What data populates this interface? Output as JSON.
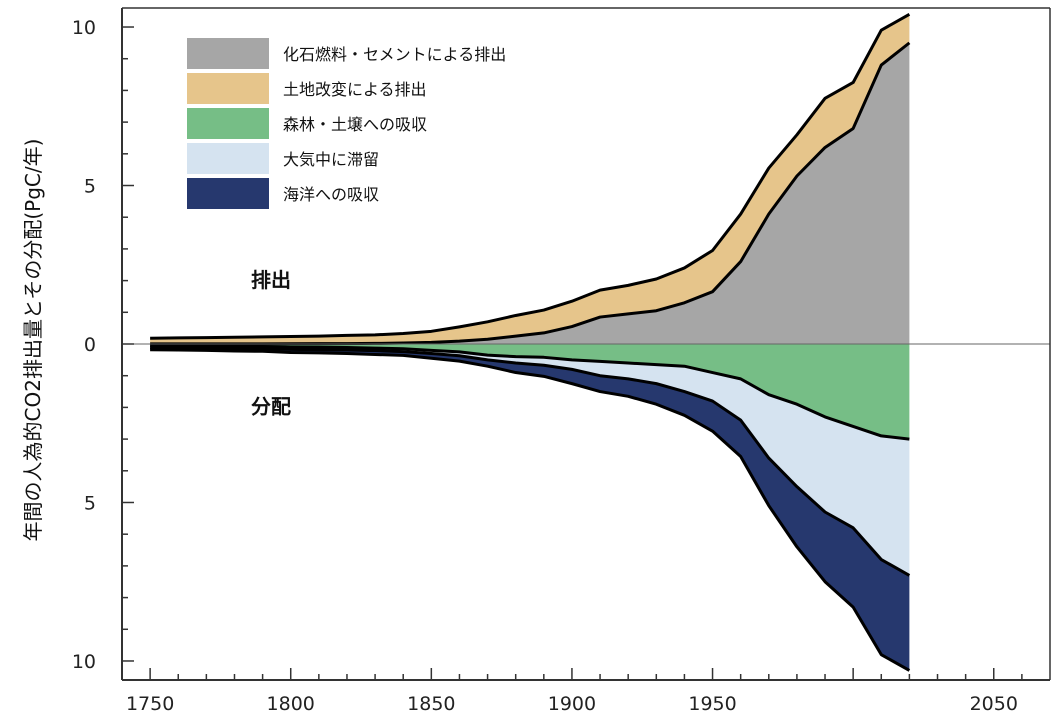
{
  "chart_data": {
    "type": "area",
    "ylabel": "年間の人為的CO2排出量とその分配(PgC/年)",
    "xlim": [
      1740,
      2070
    ],
    "ylim": [
      -10.6,
      10.6
    ],
    "x_ticks": [
      1750,
      1800,
      1850,
      1900,
      1950,
      2050
    ],
    "x_tick_labels": [
      "1750",
      "1800",
      "1850",
      "1900",
      "1950",
      "2050"
    ],
    "y_ticks": [
      10,
      5,
      0,
      -5,
      -10
    ],
    "y_tick_labels": [
      "10",
      "5",
      "0",
      "5",
      "10"
    ],
    "annotations": [
      {
        "text": "排出",
        "x": 1793,
        "y": 1.8
      },
      {
        "text": "分配",
        "x": 1793,
        "y": -2.2
      }
    ],
    "legend": {
      "position": "top-left",
      "entries": [
        {
          "label": "化石燃料・セメントによる排出",
          "color": "#a6a6a6"
        },
        {
          "label": "土地改変による排出",
          "color": "#e6c58b"
        },
        {
          "label": "森林・土壌への吸収",
          "color": "#76be86"
        },
        {
          "label": "大気中に滞留",
          "color": "#d5e3f0"
        },
        {
          "label": "海洋への吸収",
          "color": "#26386e"
        }
      ]
    },
    "x": [
      1750,
      1760,
      1770,
      1780,
      1790,
      1800,
      1810,
      1820,
      1830,
      1840,
      1850,
      1860,
      1870,
      1880,
      1890,
      1900,
      1910,
      1920,
      1930,
      1940,
      1950,
      1960,
      1970,
      1980,
      1990,
      2000,
      2010,
      2020
    ],
    "series": [
      {
        "name": "化石燃料・セメントによる排出",
        "role": "emission_positive",
        "color": "#a6a6a6",
        "values": [
          0.003,
          0.003,
          0.003,
          0.004,
          0.005,
          0.008,
          0.01,
          0.013,
          0.018,
          0.03,
          0.05,
          0.09,
          0.15,
          0.25,
          0.35,
          0.55,
          0.85,
          0.95,
          1.05,
          1.3,
          1.65,
          2.6,
          4.1,
          5.3,
          6.2,
          6.8,
          8.8,
          9.5
        ]
      },
      {
        "name": "土地改変による排出",
        "role": "emission_positive",
        "color": "#e6c58b",
        "values": [
          0.18,
          0.19,
          0.2,
          0.21,
          0.22,
          0.23,
          0.24,
          0.26,
          0.27,
          0.3,
          0.35,
          0.45,
          0.55,
          0.65,
          0.72,
          0.8,
          0.85,
          0.9,
          1.0,
          1.1,
          1.3,
          1.5,
          1.45,
          1.3,
          1.55,
          1.45,
          1.1,
          0.9
        ]
      },
      {
        "name": "森林・土壌への吸収",
        "role": "sink_negative",
        "color": "#76be86",
        "values": [
          0.05,
          0.06,
          0.06,
          0.07,
          0.08,
          0.1,
          0.1,
          0.11,
          0.13,
          0.15,
          0.2,
          0.25,
          0.35,
          0.4,
          0.42,
          0.5,
          0.55,
          0.6,
          0.65,
          0.7,
          0.9,
          1.1,
          1.6,
          1.9,
          2.3,
          2.6,
          2.9,
          3.0
        ]
      },
      {
        "name": "大気中に滞留",
        "role": "sink_negative",
        "color": "#d5e3f0",
        "values": [
          0.06,
          0.06,
          0.06,
          0.07,
          0.07,
          0.07,
          0.08,
          0.08,
          0.08,
          0.09,
          0.1,
          0.12,
          0.15,
          0.2,
          0.25,
          0.3,
          0.45,
          0.5,
          0.6,
          0.8,
          0.9,
          1.3,
          2.0,
          2.6,
          3.0,
          3.2,
          3.9,
          4.3
        ]
      },
      {
        "name": "海洋への吸収",
        "role": "sink_negative",
        "color": "#26386e",
        "values": [
          0.07,
          0.07,
          0.08,
          0.08,
          0.08,
          0.1,
          0.1,
          0.11,
          0.12,
          0.12,
          0.15,
          0.17,
          0.2,
          0.3,
          0.35,
          0.45,
          0.5,
          0.55,
          0.65,
          0.75,
          0.95,
          1.15,
          1.5,
          1.9,
          2.2,
          2.5,
          3.0,
          3.0
        ]
      }
    ]
  }
}
